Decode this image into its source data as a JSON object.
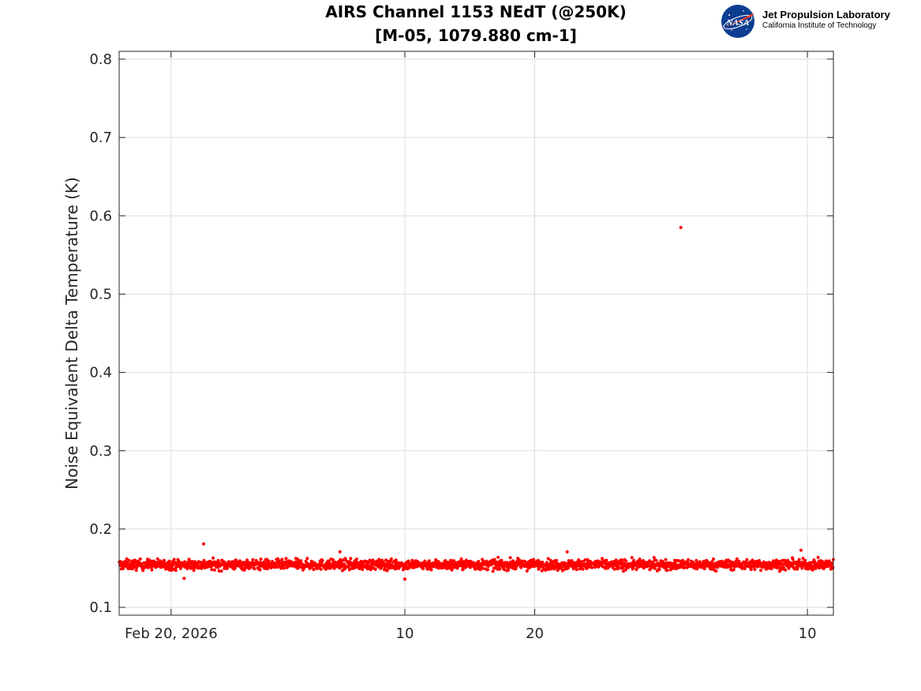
{
  "logo": {
    "org_name": "Jet Propulsion Laboratory",
    "org_sub": "California Institute of Technology",
    "badge_text": "NASA"
  },
  "chart_data": {
    "type": "scatter",
    "title": "AIRS Channel 1153 NEdT (@250K)",
    "subtitle": "[M-05, 1079.880 cm-1]",
    "xlabel": "",
    "ylabel": "Noise Equivalent Delta Temperature (K)",
    "x_type": "date",
    "xlim": [
      "2026-02-16",
      "2026-04-12"
    ],
    "ylim": [
      0.09,
      0.81
    ],
    "x_ticks": [
      {
        "value": "2026-02-20",
        "label": "Feb 20, 2026"
      },
      {
        "value": "2026-03-10",
        "label": "10"
      },
      {
        "value": "2026-03-20",
        "label": "20"
      },
      {
        "value": "2026-04-10",
        "label": "10"
      }
    ],
    "y_ticks": [
      0.1,
      0.2,
      0.3,
      0.4,
      0.5,
      0.6,
      0.7,
      0.8
    ],
    "grid": true,
    "marker_color": "#ff0000",
    "series": [
      {
        "date_range": [
          "2026-02-16",
          "2026-04-12"
        ],
        "band_center": 0.1545,
        "band_halfwidth": 0.0085,
        "outliers": [
          {
            "x": "2026-02-22 12:00",
            "y": 0.181
          },
          {
            "x": "2026-03-05 00:00",
            "y": 0.171
          },
          {
            "x": "2026-03-22 12:00",
            "y": 0.171
          },
          {
            "x": "2026-04-09 12:00",
            "y": 0.173
          },
          {
            "x": "2026-03-31 06:00",
            "y": 0.585
          },
          {
            "x": "2026-03-10 00:00",
            "y": 0.136
          },
          {
            "x": "2026-02-21 00:00",
            "y": 0.137
          }
        ]
      }
    ]
  }
}
